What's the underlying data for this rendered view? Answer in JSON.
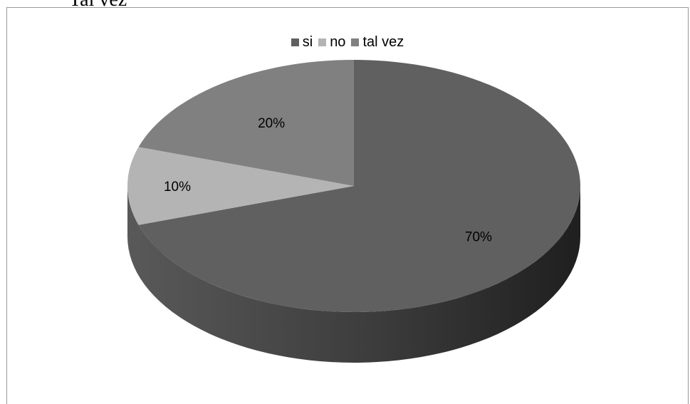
{
  "header": {
    "partial_text": "Tal vez"
  },
  "chart_data": {
    "type": "pie",
    "style": "3d",
    "categories": [
      "si",
      "no",
      "tal vez"
    ],
    "values": [
      70,
      10,
      20
    ],
    "labels": [
      "70%",
      "10%",
      "20%"
    ],
    "colors": [
      "#606060",
      "#b4b4b4",
      "#808080"
    ],
    "legend_placement": "top",
    "title": ""
  }
}
